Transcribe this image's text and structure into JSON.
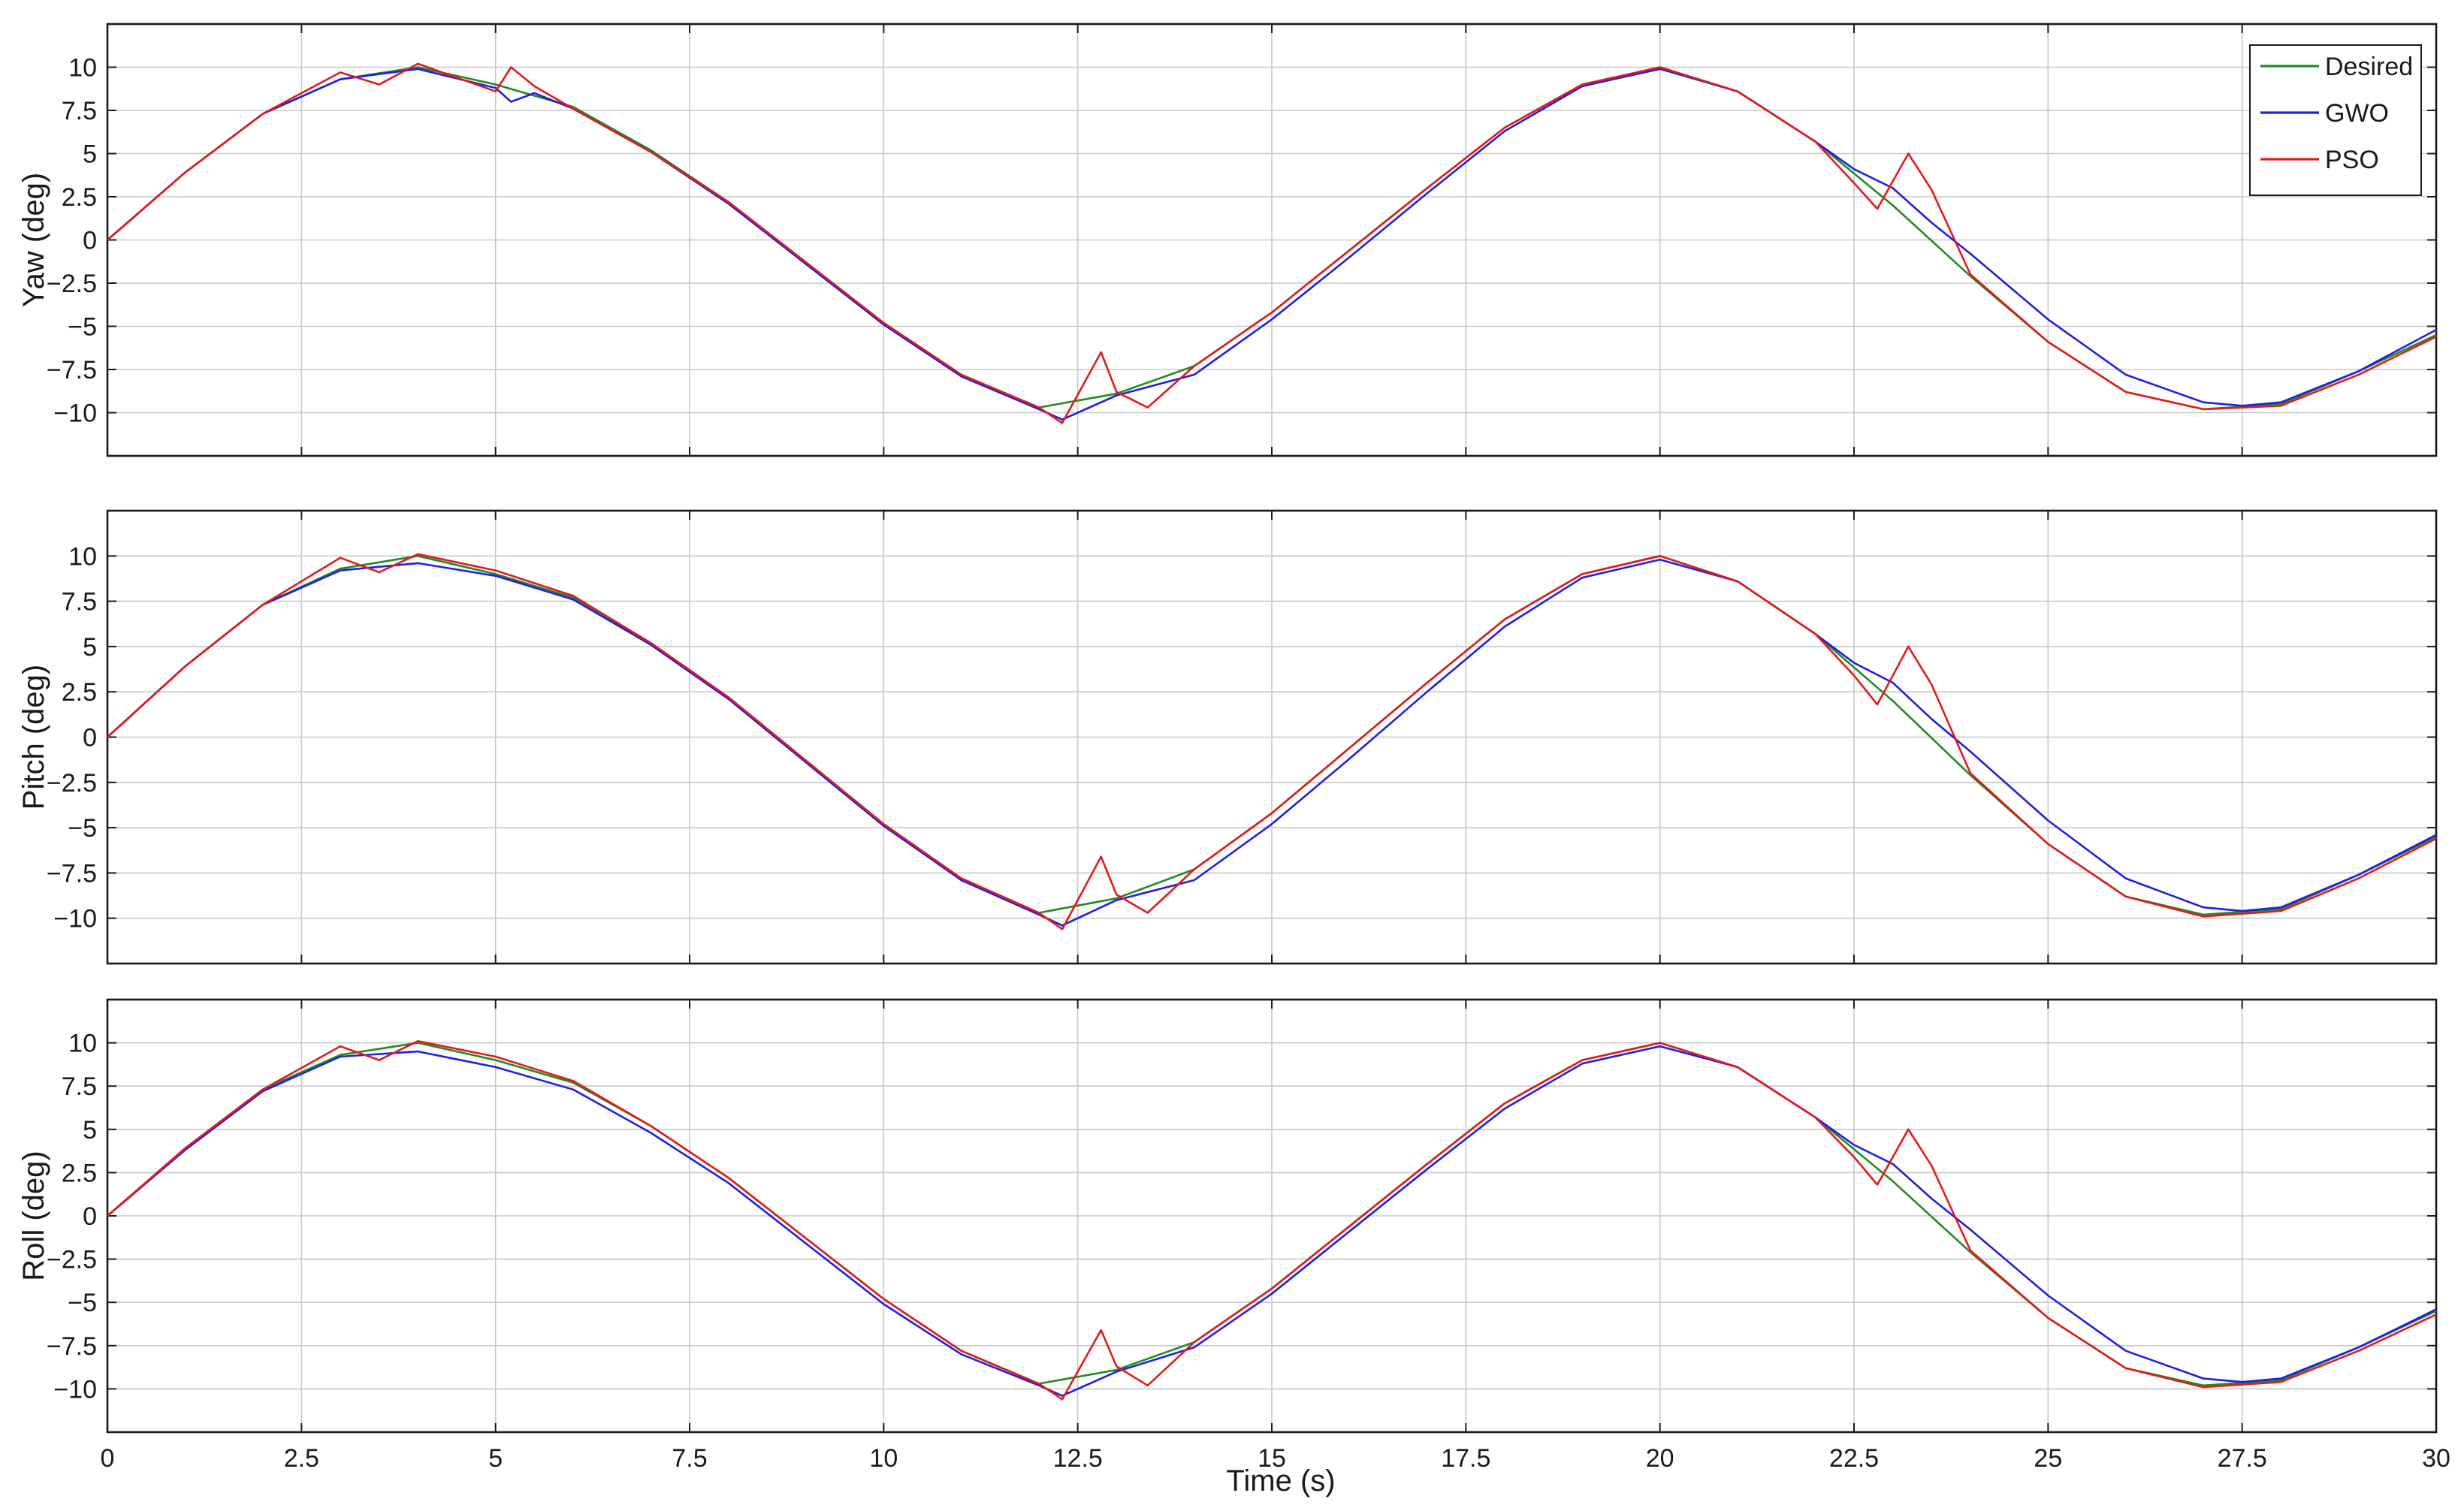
{
  "chart_data": {
    "type": "line",
    "x_label": "Time (s)",
    "x_ticks": [
      "0",
      "2.5",
      "5",
      "7.5",
      "10",
      "12.5",
      "15",
      "17.5",
      "20",
      "22.5",
      "25",
      "27.5",
      "30"
    ],
    "xlim": [
      0,
      30
    ],
    "grid": true,
    "legend_position": "top-right",
    "legend": [
      {
        "name": "Desired",
        "color": "#228b22"
      },
      {
        "name": "GWO",
        "color": "#1f1fe6"
      },
      {
        "name": "PSO",
        "color": "#e41a1a"
      }
    ],
    "y_ticks": [
      "10",
      "7.5",
      "5",
      "2.5",
      "0",
      "−2.5",
      "−5",
      "−7.5",
      "−10"
    ],
    "ylim": [
      -12.5,
      12.5
    ],
    "panels": [
      {
        "ylabel": "Yaw (deg)",
        "series": [
          {
            "name": "Desired",
            "x": [
              0,
              1,
              2,
              3,
              4,
              5,
              6,
              7,
              8,
              9,
              10,
              11,
              12,
              13,
              14,
              15,
              16,
              17,
              18,
              19,
              20,
              21,
              22,
              23,
              24,
              25,
              26,
              27,
              28,
              29,
              30
            ],
            "y": [
              0,
              3.9,
              7.3,
              9.3,
              10.0,
              9.0,
              7.7,
              5.2,
              2.2,
              -1.3,
              -4.8,
              -7.8,
              -9.7,
              -8.9,
              -7.3,
              -4.2,
              -0.6,
              3.0,
              6.5,
              9.0,
              10.0,
              8.6,
              5.7,
              2.0,
              -2.1,
              -5.9,
              -8.8,
              -9.8,
              -9.5,
              -7.6,
              -5.5
            ]
          },
          {
            "name": "GWO",
            "x": [
              0,
              1,
              2,
              3,
              4,
              5,
              5.2,
              5.5,
              6,
              7,
              8,
              9,
              10,
              11,
              12,
              12.3,
              13,
              14,
              15,
              16,
              17,
              18,
              19,
              20,
              21,
              22,
              22.5,
              23,
              23.5,
              24,
              25,
              26,
              27,
              27.5,
              28,
              29,
              30
            ],
            "y": [
              0,
              3.9,
              7.3,
              9.3,
              9.9,
              8.8,
              8.0,
              8.5,
              7.6,
              5.1,
              2.1,
              -1.4,
              -4.9,
              -7.9,
              -9.8,
              -10.4,
              -9.0,
              -7.8,
              -4.6,
              -1.0,
              2.7,
              6.3,
              8.9,
              9.9,
              8.6,
              5.7,
              4.1,
              3.0,
              1.0,
              -0.8,
              -4.6,
              -7.8,
              -9.4,
              -9.6,
              -9.4,
              -7.6,
              -5.2
            ]
          },
          {
            "name": "PSO",
            "x": [
              0,
              1,
              2,
              3,
              3.5,
              4,
              5,
              5.2,
              5.5,
              6,
              7,
              8,
              9,
              10,
              11,
              12,
              12.3,
              12.8,
              13,
              13.4,
              14,
              15,
              16,
              17,
              18,
              19,
              20,
              21,
              22,
              22.5,
              22.8,
              23.2,
              23.5,
              24,
              25,
              26,
              27,
              28,
              29,
              30
            ],
            "y": [
              0,
              3.9,
              7.3,
              9.7,
              9.0,
              10.2,
              8.6,
              10.0,
              8.9,
              7.6,
              5.1,
              2.2,
              -1.3,
              -4.8,
              -7.8,
              -9.7,
              -10.6,
              -6.5,
              -8.8,
              -9.7,
              -7.3,
              -4.2,
              -0.6,
              3.0,
              6.5,
              9.0,
              10.0,
              8.6,
              5.7,
              3.3,
              1.8,
              5.0,
              2.9,
              -2.0,
              -5.9,
              -8.8,
              -9.8,
              -9.6,
              -7.8,
              -5.6
            ]
          }
        ]
      },
      {
        "ylabel": "Pitch (deg)",
        "series": [
          {
            "name": "Desired",
            "x": [
              0,
              1,
              2,
              3,
              4,
              5,
              6,
              7,
              8,
              9,
              10,
              11,
              12,
              13,
              14,
              15,
              16,
              17,
              18,
              19,
              20,
              21,
              22,
              23,
              24,
              25,
              26,
              27,
              28,
              29,
              30
            ],
            "y": [
              0,
              3.9,
              7.3,
              9.3,
              10.0,
              9.0,
              7.7,
              5.2,
              2.2,
              -1.3,
              -4.8,
              -7.8,
              -9.7,
              -8.9,
              -7.3,
              -4.2,
              -0.6,
              3.0,
              6.5,
              9.0,
              10.0,
              8.6,
              5.7,
              2.0,
              -2.1,
              -5.9,
              -8.8,
              -9.8,
              -9.5,
              -7.6,
              -5.5
            ]
          },
          {
            "name": "GWO",
            "x": [
              0,
              1,
              2,
              3,
              4,
              5,
              6,
              7,
              8,
              9,
              10,
              11,
              12,
              12.3,
              13,
              14,
              15,
              16,
              17,
              18,
              19,
              20,
              21,
              22,
              22.5,
              23,
              23.5,
              24,
              25,
              26,
              27,
              27.5,
              28,
              29,
              30
            ],
            "y": [
              0,
              3.9,
              7.3,
              9.2,
              9.6,
              8.9,
              7.6,
              5.1,
              2.1,
              -1.4,
              -4.9,
              -7.9,
              -9.8,
              -10.4,
              -9.0,
              -7.9,
              -4.8,
              -1.2,
              2.5,
              6.1,
              8.8,
              9.8,
              8.6,
              5.7,
              4.1,
              3.0,
              1.0,
              -0.8,
              -4.6,
              -7.8,
              -9.4,
              -9.6,
              -9.4,
              -7.6,
              -5.4
            ]
          },
          {
            "name": "PSO",
            "x": [
              0,
              1,
              2,
              3,
              3.5,
              4,
              5,
              6,
              7,
              8,
              9,
              10,
              11,
              12,
              12.3,
              12.8,
              13,
              13.4,
              14,
              15,
              16,
              17,
              18,
              19,
              20,
              21,
              22,
              22.5,
              22.8,
              23.2,
              23.5,
              24,
              25,
              26,
              27,
              28,
              29,
              30
            ],
            "y": [
              0,
              3.9,
              7.3,
              9.9,
              9.1,
              10.1,
              9.2,
              7.8,
              5.2,
              2.2,
              -1.3,
              -4.8,
              -7.8,
              -9.7,
              -10.6,
              -6.6,
              -8.7,
              -9.7,
              -7.3,
              -4.2,
              -0.6,
              3.0,
              6.5,
              9.0,
              10.0,
              8.6,
              5.7,
              3.4,
              1.8,
              5.0,
              2.9,
              -2.0,
              -5.9,
              -8.8,
              -9.9,
              -9.6,
              -7.8,
              -5.6
            ]
          }
        ]
      },
      {
        "ylabel": "Roll (deg)",
        "series": [
          {
            "name": "Desired",
            "x": [
              0,
              1,
              2,
              3,
              4,
              5,
              6,
              7,
              8,
              9,
              10,
              11,
              12,
              13,
              14,
              15,
              16,
              17,
              18,
              19,
              20,
              21,
              22,
              23,
              24,
              25,
              26,
              27,
              28,
              29,
              30
            ],
            "y": [
              0,
              3.9,
              7.3,
              9.3,
              10.0,
              9.0,
              7.7,
              5.2,
              2.2,
              -1.3,
              -4.8,
              -7.8,
              -9.7,
              -8.9,
              -7.3,
              -4.2,
              -0.6,
              3.0,
              6.5,
              9.0,
              10.0,
              8.6,
              5.7,
              2.0,
              -2.1,
              -5.9,
              -8.8,
              -9.8,
              -9.5,
              -7.6,
              -5.5
            ]
          },
          {
            "name": "GWO",
            "x": [
              0,
              1,
              2,
              3,
              4,
              5,
              6,
              7,
              8,
              9,
              10,
              11,
              12,
              12.3,
              13,
              14,
              15,
              16,
              17,
              18,
              19,
              20,
              21,
              22,
              22.5,
              23,
              23.5,
              24,
              25,
              26,
              27,
              27.5,
              28,
              29,
              30
            ],
            "y": [
              0,
              3.8,
              7.2,
              9.2,
              9.5,
              8.6,
              7.3,
              4.8,
              1.9,
              -1.6,
              -5.1,
              -8.0,
              -9.8,
              -10.4,
              -9.0,
              -7.6,
              -4.5,
              -0.9,
              2.7,
              6.2,
              8.8,
              9.8,
              8.6,
              5.7,
              4.1,
              3.0,
              1.0,
              -0.8,
              -4.6,
              -7.8,
              -9.4,
              -9.6,
              -9.4,
              -7.6,
              -5.4
            ]
          },
          {
            "name": "PSO",
            "x": [
              0,
              1,
              2,
              3,
              3.5,
              4,
              5,
              6,
              7,
              8,
              9,
              10,
              11,
              12,
              12.3,
              12.8,
              13,
              13.4,
              14,
              15,
              16,
              17,
              18,
              19,
              20,
              21,
              22,
              22.5,
              22.8,
              23.2,
              23.5,
              24,
              25,
              26,
              27,
              28,
              29,
              30
            ],
            "y": [
              0,
              3.9,
              7.3,
              9.8,
              9.0,
              10.1,
              9.2,
              7.8,
              5.2,
              2.2,
              -1.3,
              -4.8,
              -7.8,
              -9.7,
              -10.6,
              -6.6,
              -8.7,
              -9.8,
              -7.3,
              -4.2,
              -0.6,
              3.0,
              6.5,
              9.0,
              10.0,
              8.6,
              5.7,
              3.4,
              1.8,
              5.0,
              2.9,
              -2.0,
              -5.9,
              -8.8,
              -9.9,
              -9.6,
              -7.8,
              -5.7
            ]
          }
        ]
      }
    ]
  }
}
